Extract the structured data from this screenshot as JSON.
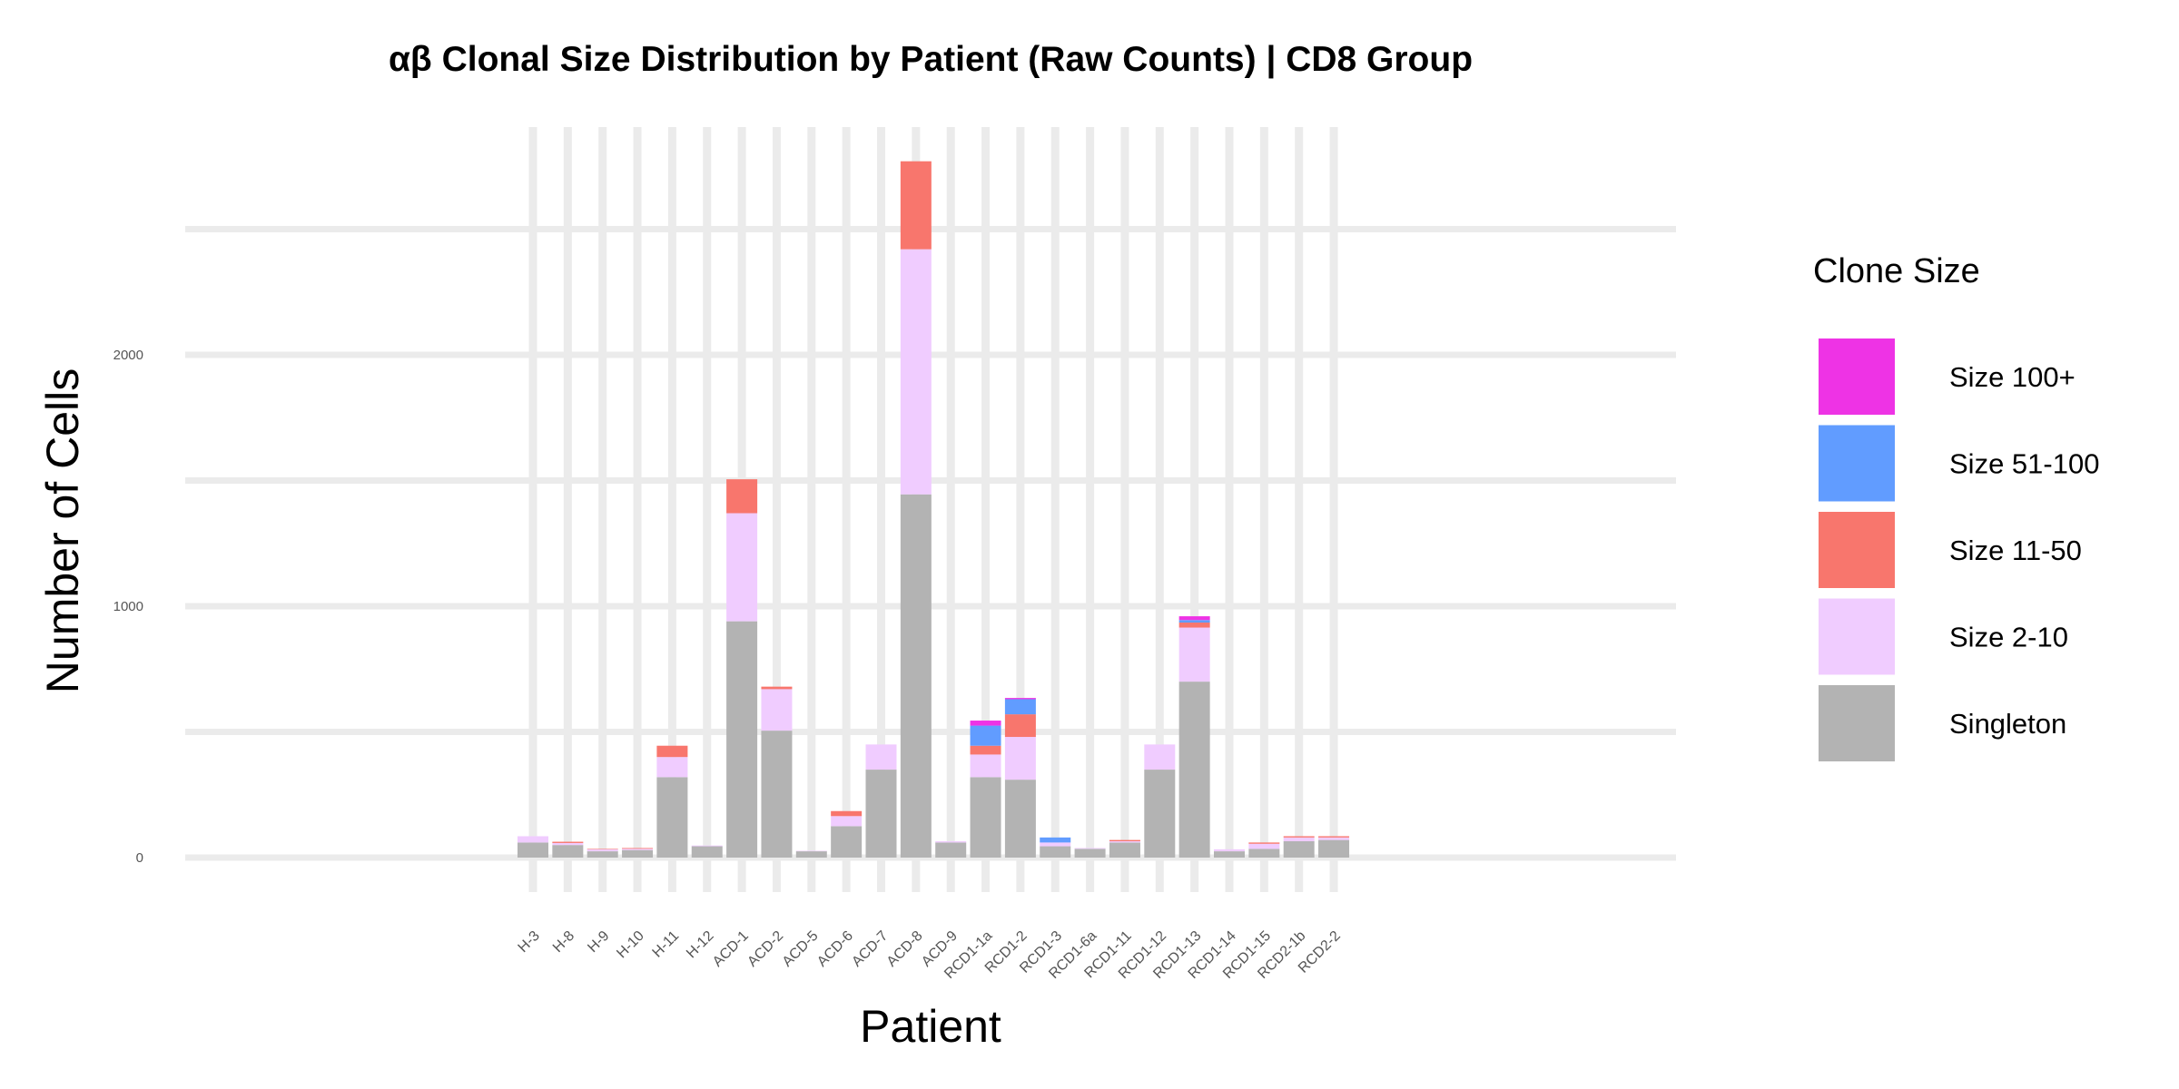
{
  "chart_data": {
    "type": "bar",
    "stacked": true,
    "title": "αβ Clonal Size Distribution by Patient (Raw Counts) | CD8 Group",
    "xlabel": "Patient",
    "ylabel": "Number of Cells",
    "ylim": [
      -130,
      2900
    ],
    "yticks": [
      0,
      1000,
      2000
    ],
    "y_minor_gridlines": [
      500,
      1500,
      2500
    ],
    "grid": true,
    "legend": {
      "title": "Clone Size",
      "position": "right"
    },
    "categories": [
      "H-3",
      "H-8",
      "H-9",
      "H-10",
      "H-11",
      "H-12",
      "ACD-1",
      "ACD-2",
      "ACD-5",
      "ACD-6",
      "ACD-7",
      "ACD-8",
      "ACD-9",
      "RCD1-1a",
      "RCD1-2",
      "RCD1-3",
      "RCD1-6a",
      "RCD1-11",
      "RCD1-12",
      "RCD1-13",
      "RCD1-14",
      "RCD1-15",
      "RCD2-1b",
      "RCD2-2"
    ],
    "series": [
      {
        "name": "Singleton",
        "color": "#B3B3B3",
        "values": [
          60,
          50,
          25,
          30,
          320,
          45,
          940,
          505,
          25,
          125,
          350,
          1445,
          60,
          320,
          310,
          45,
          35,
          60,
          350,
          700,
          25,
          35,
          65,
          70
        ]
      },
      {
        "name": "Size 2-10",
        "color": "#F0CCFF",
        "values": [
          25,
          8,
          8,
          5,
          80,
          3,
          430,
          165,
          2,
          40,
          100,
          975,
          5,
          90,
          170,
          15,
          3,
          5,
          100,
          215,
          8,
          20,
          15,
          10
        ]
      },
      {
        "name": "Size 11-50",
        "color": "#F8766D",
        "values": [
          0,
          5,
          2,
          3,
          45,
          0,
          135,
          10,
          0,
          20,
          0,
          350,
          0,
          35,
          90,
          0,
          0,
          5,
          0,
          20,
          0,
          5,
          5,
          5
        ]
      },
      {
        "name": "Size 51-100",
        "color": "#619CFF",
        "values": [
          0,
          0,
          0,
          0,
          0,
          0,
          0,
          0,
          0,
          0,
          0,
          0,
          0,
          80,
          60,
          20,
          0,
          0,
          0,
          10,
          0,
          0,
          0,
          0
        ]
      },
      {
        "name": "Size 100+",
        "color": "#EE33E5",
        "values": [
          0,
          0,
          0,
          0,
          0,
          0,
          0,
          0,
          0,
          0,
          0,
          0,
          0,
          20,
          5,
          0,
          0,
          0,
          0,
          15,
          0,
          0,
          0,
          0
        ]
      }
    ],
    "legend_order": [
      "Size 100+",
      "Size 51-100",
      "Size 11-50",
      "Size 2-10",
      "Singleton"
    ]
  }
}
